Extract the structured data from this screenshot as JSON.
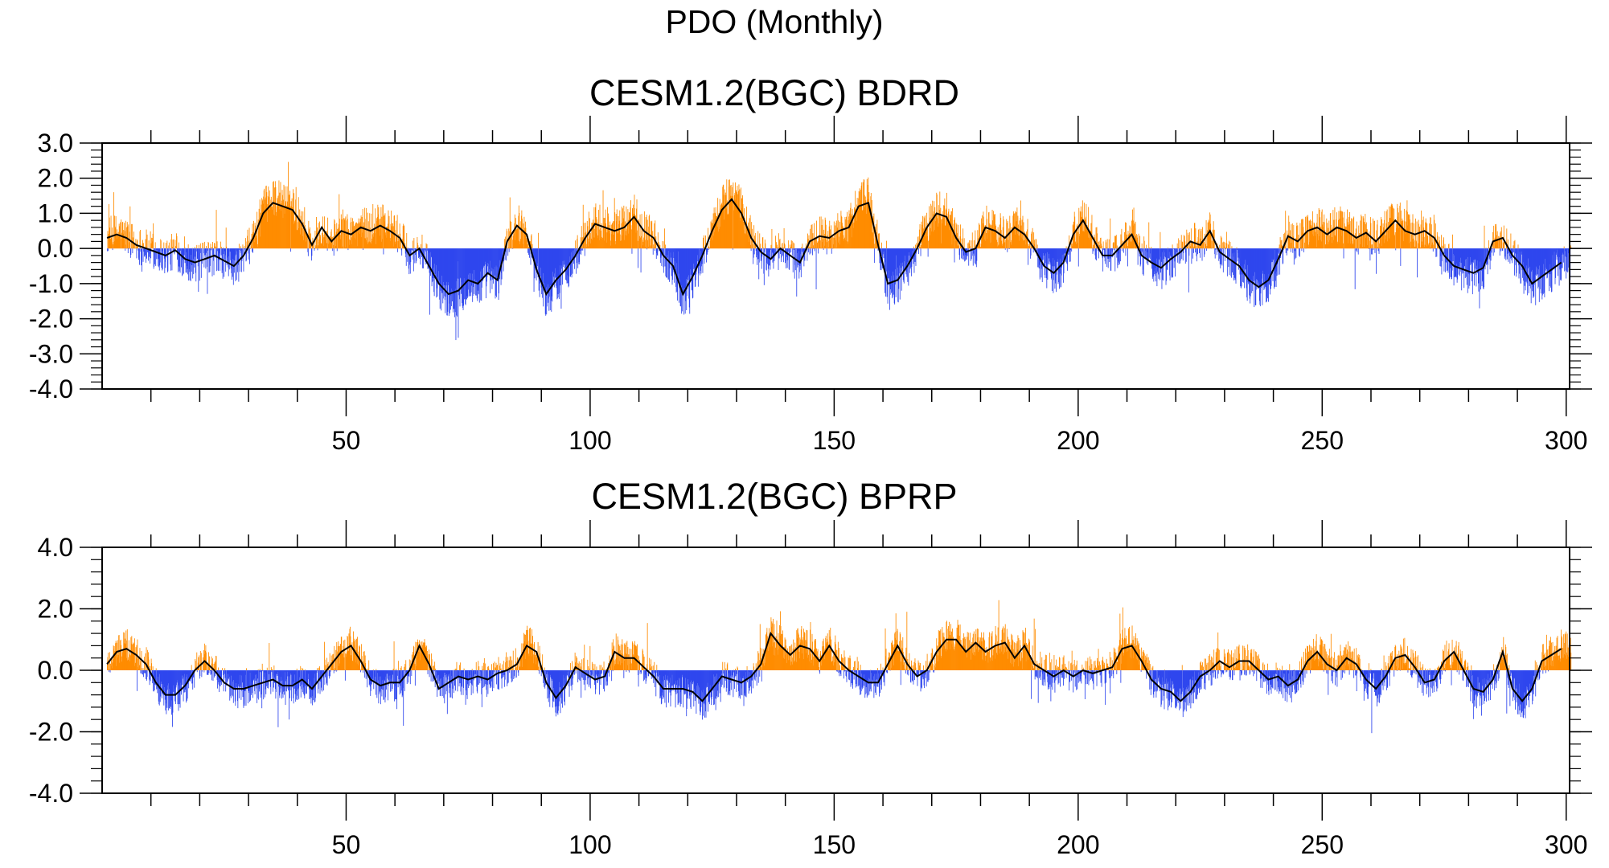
{
  "figure_title": "PDO (Monthly)",
  "colors": {
    "positive": "#ff8c00",
    "negative": "#2f47ee",
    "smooth_line": "#000000",
    "frame": "#000000"
  },
  "chart_data": [
    {
      "type": "bar",
      "subtype": "monthly anomaly bars with smoothed line",
      "title": "CESM1.2(BGC) BDRD",
      "xlabel": "",
      "ylabel": "",
      "xlim": [
        0,
        300.7
      ],
      "ylim": [
        -4.0,
        3.0
      ],
      "x_ticks": [
        50,
        100,
        150,
        200,
        250,
        300
      ],
      "x_tick_labels": [
        "50",
        "100",
        "150",
        "200",
        "250",
        "300"
      ],
      "y_ticks": [
        3.0,
        2.0,
        1.0,
        0.0,
        -1.0,
        -2.0,
        -3.0,
        -4.0
      ],
      "y_tick_labels": [
        "3.0",
        "2.0",
        "1.0",
        "0.0",
        "-1.0",
        "-2.0",
        "-3.0",
        "-4.0"
      ],
      "year_range": [
        1,
        300
      ],
      "smooth_series": [
        [
          1,
          0.3
        ],
        [
          3,
          0.4
        ],
        [
          5,
          0.3
        ],
        [
          7,
          0.1
        ],
        [
          9,
          0.0
        ],
        [
          11,
          -0.1
        ],
        [
          13,
          -0.2
        ],
        [
          15,
          -0.05
        ],
        [
          17,
          -0.3
        ],
        [
          19,
          -0.4
        ],
        [
          21,
          -0.3
        ],
        [
          23,
          -0.2
        ],
        [
          25,
          -0.35
        ],
        [
          27,
          -0.5
        ],
        [
          29,
          -0.2
        ],
        [
          31,
          0.3
        ],
        [
          33,
          1.0
        ],
        [
          35,
          1.3
        ],
        [
          37,
          1.2
        ],
        [
          39,
          1.1
        ],
        [
          41,
          0.7
        ],
        [
          43,
          0.1
        ],
        [
          45,
          0.6
        ],
        [
          47,
          0.2
        ],
        [
          49,
          0.5
        ],
        [
          51,
          0.4
        ],
        [
          53,
          0.6
        ],
        [
          55,
          0.5
        ],
        [
          57,
          0.65
        ],
        [
          59,
          0.5
        ],
        [
          61,
          0.3
        ],
        [
          63,
          -0.2
        ],
        [
          65,
          0.0
        ],
        [
          67,
          -0.5
        ],
        [
          69,
          -1.0
        ],
        [
          71,
          -1.3
        ],
        [
          73,
          -1.2
        ],
        [
          75,
          -0.9
        ],
        [
          77,
          -1.0
        ],
        [
          79,
          -0.7
        ],
        [
          81,
          -0.9
        ],
        [
          83,
          0.2
        ],
        [
          85,
          0.65
        ],
        [
          87,
          0.4
        ],
        [
          89,
          -0.6
        ],
        [
          91,
          -1.3
        ],
        [
          93,
          -0.9
        ],
        [
          95,
          -0.6
        ],
        [
          97,
          -0.2
        ],
        [
          99,
          0.3
        ],
        [
          101,
          0.7
        ],
        [
          103,
          0.6
        ],
        [
          105,
          0.5
        ],
        [
          107,
          0.6
        ],
        [
          109,
          0.9
        ],
        [
          111,
          0.5
        ],
        [
          113,
          0.3
        ],
        [
          115,
          -0.2
        ],
        [
          117,
          -0.5
        ],
        [
          119,
          -1.3
        ],
        [
          121,
          -0.8
        ],
        [
          123,
          -0.2
        ],
        [
          125,
          0.5
        ],
        [
          127,
          1.1
        ],
        [
          129,
          1.4
        ],
        [
          131,
          1.0
        ],
        [
          133,
          0.3
        ],
        [
          135,
          -0.1
        ],
        [
          137,
          -0.3
        ],
        [
          139,
          0.0
        ],
        [
          141,
          -0.2
        ],
        [
          143,
          -0.4
        ],
        [
          145,
          0.2
        ],
        [
          147,
          0.35
        ],
        [
          149,
          0.3
        ],
        [
          151,
          0.5
        ],
        [
          153,
          0.6
        ],
        [
          155,
          1.2
        ],
        [
          157,
          1.3
        ],
        [
          159,
          0.1
        ],
        [
          161,
          -1.0
        ],
        [
          163,
          -0.9
        ],
        [
          165,
          -0.5
        ],
        [
          167,
          0.0
        ],
        [
          169,
          0.6
        ],
        [
          171,
          1.0
        ],
        [
          173,
          0.9
        ],
        [
          175,
          0.3
        ],
        [
          177,
          -0.1
        ],
        [
          179,
          0.0
        ],
        [
          181,
          0.6
        ],
        [
          183,
          0.5
        ],
        [
          185,
          0.3
        ],
        [
          187,
          0.6
        ],
        [
          189,
          0.4
        ],
        [
          191,
          0.0
        ],
        [
          193,
          -0.5
        ],
        [
          195,
          -0.7
        ],
        [
          197,
          -0.4
        ],
        [
          199,
          0.4
        ],
        [
          201,
          0.8
        ],
        [
          203,
          0.3
        ],
        [
          205,
          -0.2
        ],
        [
          207,
          -0.2
        ],
        [
          209,
          0.1
        ],
        [
          211,
          0.4
        ],
        [
          213,
          -0.2
        ],
        [
          215,
          -0.4
        ],
        [
          217,
          -0.55
        ],
        [
          219,
          -0.3
        ],
        [
          221,
          -0.1
        ],
        [
          223,
          0.2
        ],
        [
          225,
          0.1
        ],
        [
          227,
          0.5
        ],
        [
          229,
          -0.1
        ],
        [
          231,
          -0.3
        ],
        [
          233,
          -0.5
        ],
        [
          235,
          -0.9
        ],
        [
          237,
          -1.1
        ],
        [
          239,
          -0.9
        ],
        [
          241,
          -0.3
        ],
        [
          243,
          0.35
        ],
        [
          245,
          0.2
        ],
        [
          247,
          0.5
        ],
        [
          249,
          0.6
        ],
        [
          251,
          0.4
        ],
        [
          253,
          0.6
        ],
        [
          255,
          0.5
        ],
        [
          257,
          0.3
        ],
        [
          259,
          0.45
        ],
        [
          261,
          0.2
        ],
        [
          263,
          0.5
        ],
        [
          265,
          0.8
        ],
        [
          267,
          0.5
        ],
        [
          269,
          0.4
        ],
        [
          271,
          0.5
        ],
        [
          273,
          0.3
        ],
        [
          275,
          -0.2
        ],
        [
          277,
          -0.5
        ],
        [
          279,
          -0.6
        ],
        [
          281,
          -0.7
        ],
        [
          283,
          -0.55
        ],
        [
          285,
          0.2
        ],
        [
          287,
          0.3
        ],
        [
          289,
          -0.2
        ],
        [
          291,
          -0.5
        ],
        [
          293,
          -1.0
        ],
        [
          295,
          -0.8
        ],
        [
          297,
          -0.6
        ],
        [
          299,
          -0.4
        ]
      ]
    },
    {
      "type": "bar",
      "subtype": "monthly anomaly bars with smoothed line",
      "title": "CESM1.2(BGC) BPRP",
      "xlabel": "",
      "ylabel": "",
      "xlim": [
        0,
        300.7
      ],
      "ylim": [
        -4.0,
        4.0
      ],
      "x_ticks": [
        50,
        100,
        150,
        200,
        250,
        300
      ],
      "x_tick_labels": [
        "50",
        "100",
        "150",
        "200",
        "250",
        "300"
      ],
      "y_ticks": [
        4.0,
        2.0,
        0.0,
        -2.0,
        -4.0
      ],
      "y_tick_labels": [
        "4.0",
        "2.0",
        "0.0",
        "-2.0",
        "-4.0"
      ],
      "year_range": [
        1,
        300
      ],
      "smooth_series": [
        [
          1,
          0.2
        ],
        [
          3,
          0.6
        ],
        [
          5,
          0.7
        ],
        [
          7,
          0.5
        ],
        [
          9,
          0.2
        ],
        [
          11,
          -0.4
        ],
        [
          13,
          -0.8
        ],
        [
          15,
          -0.8
        ],
        [
          17,
          -0.5
        ],
        [
          19,
          0.0
        ],
        [
          21,
          0.3
        ],
        [
          23,
          0.0
        ],
        [
          25,
          -0.4
        ],
        [
          27,
          -0.6
        ],
        [
          29,
          -0.6
        ],
        [
          31,
          -0.5
        ],
        [
          33,
          -0.4
        ],
        [
          35,
          -0.3
        ],
        [
          37,
          -0.5
        ],
        [
          39,
          -0.5
        ],
        [
          41,
          -0.3
        ],
        [
          43,
          -0.6
        ],
        [
          45,
          -0.2
        ],
        [
          47,
          0.2
        ],
        [
          49,
          0.6
        ],
        [
          51,
          0.8
        ],
        [
          53,
          0.3
        ],
        [
          55,
          -0.3
        ],
        [
          57,
          -0.5
        ],
        [
          59,
          -0.4
        ],
        [
          61,
          -0.4
        ],
        [
          63,
          0.0
        ],
        [
          65,
          0.8
        ],
        [
          67,
          0.2
        ],
        [
          69,
          -0.6
        ],
        [
          71,
          -0.4
        ],
        [
          73,
          -0.2
        ],
        [
          75,
          -0.3
        ],
        [
          77,
          -0.2
        ],
        [
          79,
          -0.3
        ],
        [
          81,
          -0.1
        ],
        [
          83,
          0.0
        ],
        [
          85,
          0.2
        ],
        [
          87,
          0.8
        ],
        [
          89,
          0.6
        ],
        [
          91,
          -0.4
        ],
        [
          93,
          -0.9
        ],
        [
          95,
          -0.5
        ],
        [
          97,
          0.1
        ],
        [
          99,
          -0.1
        ],
        [
          101,
          -0.3
        ],
        [
          103,
          -0.2
        ],
        [
          105,
          0.6
        ],
        [
          107,
          0.4
        ],
        [
          109,
          0.4
        ],
        [
          111,
          0.1
        ],
        [
          113,
          -0.2
        ],
        [
          115,
          -0.6
        ],
        [
          117,
          -0.6
        ],
        [
          119,
          -0.6
        ],
        [
          121,
          -0.7
        ],
        [
          123,
          -1.0
        ],
        [
          125,
          -0.6
        ],
        [
          127,
          -0.2
        ],
        [
          129,
          -0.3
        ],
        [
          131,
          -0.4
        ],
        [
          133,
          -0.2
        ],
        [
          135,
          0.2
        ],
        [
          137,
          1.2
        ],
        [
          139,
          0.8
        ],
        [
          141,
          0.5
        ],
        [
          143,
          0.8
        ],
        [
          145,
          0.7
        ],
        [
          147,
          0.3
        ],
        [
          149,
          0.8
        ],
        [
          151,
          0.3
        ],
        [
          153,
          0.0
        ],
        [
          155,
          -0.2
        ],
        [
          157,
          -0.4
        ],
        [
          159,
          -0.4
        ],
        [
          161,
          0.2
        ],
        [
          163,
          0.8
        ],
        [
          165,
          0.2
        ],
        [
          167,
          -0.2
        ],
        [
          169,
          0.0
        ],
        [
          171,
          0.6
        ],
        [
          173,
          1.0
        ],
        [
          175,
          1.0
        ],
        [
          177,
          0.6
        ],
        [
          179,
          0.9
        ],
        [
          181,
          0.6
        ],
        [
          183,
          0.8
        ],
        [
          185,
          0.9
        ],
        [
          187,
          0.4
        ],
        [
          189,
          0.8
        ],
        [
          191,
          0.2
        ],
        [
          193,
          0.0
        ],
        [
          195,
          -0.2
        ],
        [
          197,
          0.0
        ],
        [
          199,
          -0.2
        ],
        [
          201,
          0.0
        ],
        [
          203,
          -0.1
        ],
        [
          205,
          0.0
        ],
        [
          207,
          0.1
        ],
        [
          209,
          0.7
        ],
        [
          211,
          0.8
        ],
        [
          213,
          0.3
        ],
        [
          215,
          -0.3
        ],
        [
          217,
          -0.6
        ],
        [
          219,
          -0.7
        ],
        [
          221,
          -1.0
        ],
        [
          223,
          -0.7
        ],
        [
          225,
          -0.2
        ],
        [
          227,
          0.0
        ],
        [
          229,
          0.3
        ],
        [
          231,
          0.1
        ],
        [
          233,
          0.3
        ],
        [
          235,
          0.3
        ],
        [
          237,
          0.0
        ],
        [
          239,
          -0.3
        ],
        [
          241,
          -0.2
        ],
        [
          243,
          -0.5
        ],
        [
          245,
          -0.3
        ],
        [
          247,
          0.3
        ],
        [
          249,
          0.6
        ],
        [
          251,
          0.2
        ],
        [
          253,
          0.0
        ],
        [
          255,
          0.4
        ],
        [
          257,
          0.2
        ],
        [
          259,
          -0.3
        ],
        [
          261,
          -0.6
        ],
        [
          263,
          -0.2
        ],
        [
          265,
          0.4
        ],
        [
          267,
          0.5
        ],
        [
          269,
          0.1
        ],
        [
          271,
          -0.4
        ],
        [
          273,
          -0.3
        ],
        [
          275,
          0.3
        ],
        [
          277,
          0.6
        ],
        [
          279,
          0.0
        ],
        [
          281,
          -0.6
        ],
        [
          283,
          -0.7
        ],
        [
          285,
          -0.3
        ],
        [
          287,
          0.6
        ],
        [
          289,
          -0.6
        ],
        [
          291,
          -1.0
        ],
        [
          293,
          -0.6
        ],
        [
          295,
          0.3
        ],
        [
          297,
          0.5
        ],
        [
          299,
          0.7
        ]
      ]
    }
  ]
}
